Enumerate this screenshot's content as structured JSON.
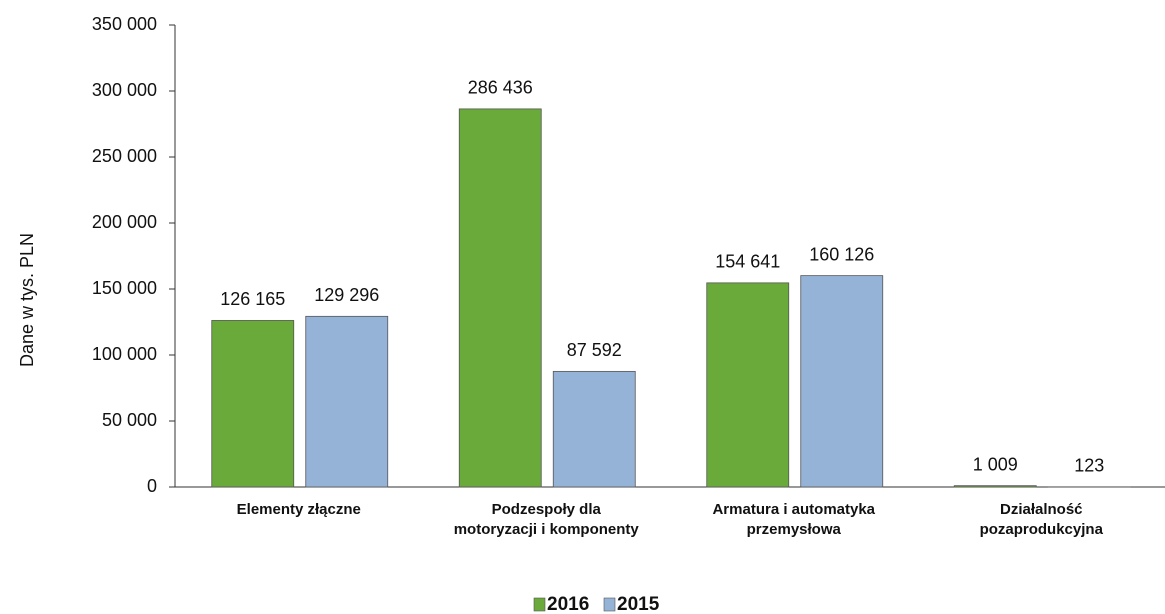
{
  "chart_data": {
    "type": "bar",
    "y_label": "Dane w tys. PLN",
    "categories": [
      "Elementy złączne",
      "Podzespoły dla motoryzacji i komponenty",
      "Armatura i automatyka przemysłowa",
      "Działalność pozaprodukcyjna"
    ],
    "series": [
      {
        "name": "2016",
        "color": "#6aaa3a",
        "values": [
          126165,
          286436,
          154641,
          1009
        ],
        "value_labels": [
          "126 165",
          "286 436",
          "154 641",
          "1 009"
        ]
      },
      {
        "name": "2015",
        "color": "#95b3d7",
        "values": [
          129296,
          87592,
          160126,
          123
        ],
        "value_labels": [
          "129 296",
          "87 592",
          "160 126",
          "123"
        ]
      }
    ],
    "ylim": [
      0,
      350000
    ],
    "yticks": [
      {
        "value": 0,
        "label": "0"
      },
      {
        "value": 50000,
        "label": "50 000"
      },
      {
        "value": 100000,
        "label": "100 000"
      },
      {
        "value": 150000,
        "label": "150 000"
      },
      {
        "value": 200000,
        "label": "200 000"
      },
      {
        "value": 250000,
        "label": "250 000"
      },
      {
        "value": 300000,
        "label": "300 000"
      },
      {
        "value": 350000,
        "label": "350 000"
      }
    ],
    "legend": "bottom"
  }
}
